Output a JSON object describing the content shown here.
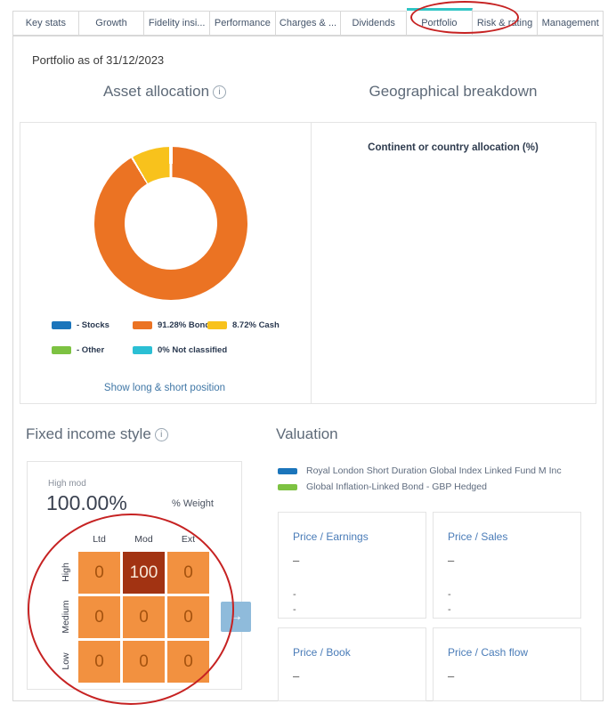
{
  "icons": {
    "info": "i",
    "arrow_right": "→"
  },
  "colors": {
    "tab_active_indicator": "#2fc5c5",
    "annotation_red": "#c62222",
    "stocks_blue": "#1b75bb",
    "bonds_orange": "#eb7323",
    "cash_yellow": "#f8c21c",
    "other_green": "#7dc242",
    "not_classified_cyan": "#2bbfd4",
    "grid_cell_orange": "#f29140",
    "grid_cell_highlight": "#a23312",
    "arrow_button_blue": "#8fbbdb"
  },
  "tabs": {
    "active_index": 6,
    "items": [
      {
        "label": "Key stats"
      },
      {
        "label": "Growth"
      },
      {
        "label": "Fidelity insi..."
      },
      {
        "label": "Performance"
      },
      {
        "label": "Charges & ..."
      },
      {
        "label": "Dividends"
      },
      {
        "label": "Portfolio"
      },
      {
        "label": "Risk & rating"
      },
      {
        "label": "Management"
      }
    ]
  },
  "page": {
    "as_of": "Portfolio as of 31/12/2023"
  },
  "asset_allocation": {
    "title": "Asset allocation",
    "legend": [
      {
        "label": "- Stocks",
        "color": "#1b75bb"
      },
      {
        "label": "91.28% Bonds",
        "color": "#eb7323"
      },
      {
        "label": "8.72% Cash",
        "color": "#f8c21c"
      },
      {
        "label": "- Other",
        "color": "#7dc242"
      },
      {
        "label": "0% Not classified",
        "color": "#2bbfd4"
      }
    ],
    "link": "Show long & short position"
  },
  "geographical_breakdown": {
    "title": "Geographical breakdown",
    "subtitle": "Continent or country allocation (%)"
  },
  "fixed_income_style": {
    "title": "Fixed income style",
    "style_label": "High mod",
    "weight_value": "100.00%",
    "weight_label": "% Weight",
    "columns": [
      "Ltd",
      "Mod",
      "Ext"
    ],
    "rows": [
      "High",
      "Medium",
      "Low"
    ],
    "values": [
      [
        0,
        100,
        0
      ],
      [
        0,
        0,
        0
      ],
      [
        0,
        0,
        0
      ]
    ]
  },
  "valuation": {
    "title": "Valuation",
    "legend": [
      {
        "label": "Royal London Short Duration Global Index Linked Fund M Inc",
        "color": "#1b75bb"
      },
      {
        "label": "Global Inflation-Linked Bond - GBP Hedged",
        "color": "#7dc242"
      }
    ],
    "metrics": [
      {
        "label": "Price / Earnings",
        "value": "–",
        "sub": [
          "-",
          "-"
        ]
      },
      {
        "label": "Price / Sales",
        "value": "–",
        "sub": [
          "-",
          "-"
        ]
      },
      {
        "label": "Price / Book",
        "value": "–",
        "sub": [
          "-",
          "-"
        ]
      },
      {
        "label": "Price / Cash flow",
        "value": "–",
        "sub": [
          "-",
          "-"
        ]
      }
    ]
  },
  "chart_data": [
    {
      "type": "pie",
      "title": "Asset allocation",
      "donut": true,
      "labels": [
        "Stocks",
        "Bonds",
        "Cash",
        "Other",
        "Not classified"
      ],
      "values": [
        0,
        91.28,
        8.72,
        0,
        0
      ],
      "colors": [
        "#1b75bb",
        "#eb7323",
        "#f8c21c",
        "#7dc242",
        "#2bbfd4"
      ],
      "legend_position": "bottom"
    },
    {
      "type": "heatmap",
      "title": "Fixed income style",
      "columns": [
        "Ltd",
        "Mod",
        "Ext"
      ],
      "rows": [
        "High",
        "Medium",
        "Low"
      ],
      "values": [
        [
          0,
          100,
          0
        ],
        [
          0,
          0,
          0
        ],
        [
          0,
          0,
          0
        ]
      ],
      "unit": "% Weight",
      "highlight_cell": "High/Mod = 100"
    }
  ]
}
